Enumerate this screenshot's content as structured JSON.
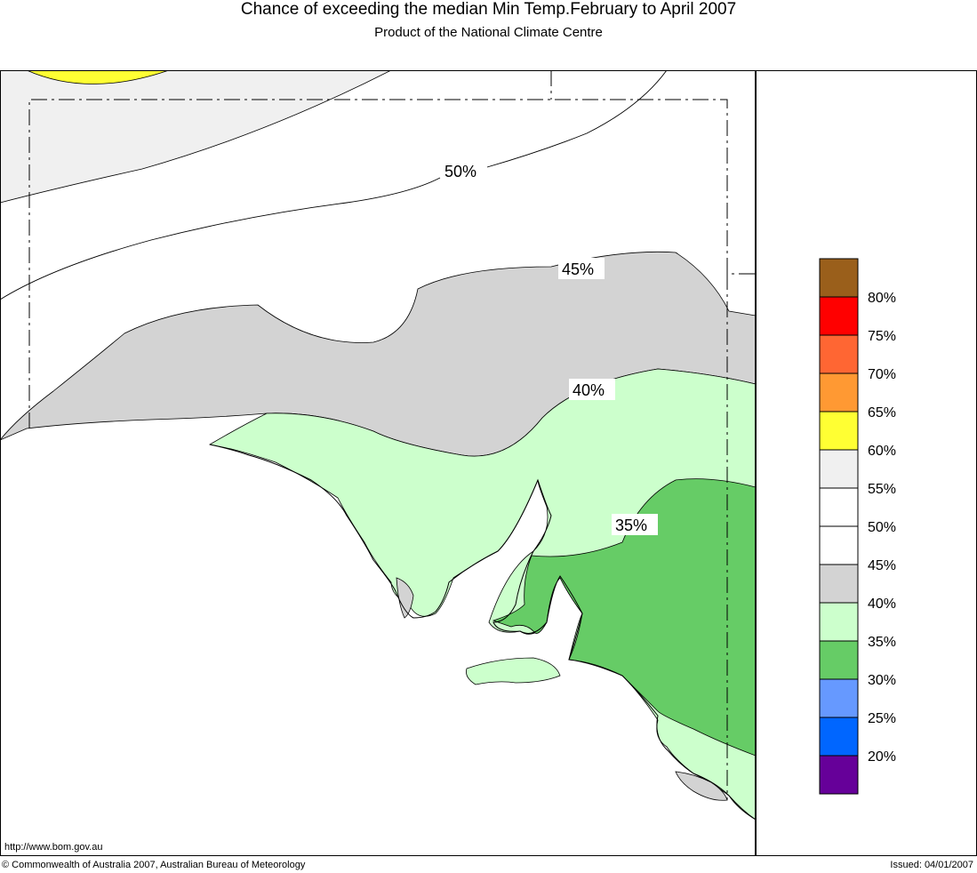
{
  "title": "Chance of exceeding the median Min Temp.February to April 2007",
  "subtitle": "Product of the National Climate Centre",
  "url": "http://www.bom.gov.au",
  "copyright": "© Commonwealth of Australia 2007, Australian Bureau of Meteorology",
  "issued": "Issued: 04/01/2007",
  "contour_labels": [
    "50%",
    "45%",
    "40%",
    "35%"
  ],
  "legend": [
    {
      "label": "",
      "color": "#9a5f1b"
    },
    {
      "label": "80%",
      "color": "#ff0000"
    },
    {
      "label": "75%",
      "color": "#ff6633"
    },
    {
      "label": "70%",
      "color": "#ff9933"
    },
    {
      "label": "65%",
      "color": "#ffff33"
    },
    {
      "label": "60%",
      "color": "#f0f0f0"
    },
    {
      "label": "55%",
      "color": "#ffffff"
    },
    {
      "label": "50%",
      "color": "#ffffff"
    },
    {
      "label": "45%",
      "color": "#d3d3d3"
    },
    {
      "label": "40%",
      "color": "#ccffcc"
    },
    {
      "label": "35%",
      "color": "#66cc66"
    },
    {
      "label": "30%",
      "color": "#6699ff"
    },
    {
      "label": "25%",
      "color": "#0066ff"
    },
    {
      "label": "20%",
      "color": "#660099"
    }
  ],
  "region_colors": {
    "above_60": "#ffff33",
    "55_60": "#f0f0f0",
    "40_45": "#d3d3d3",
    "35_40": "#ccffcc",
    "30_35": "#66cc66"
  }
}
